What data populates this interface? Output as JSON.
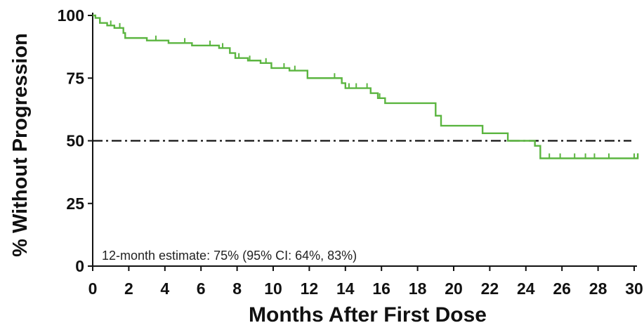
{
  "chart_data": {
    "type": "line",
    "title": "",
    "xlabel": "Months After First Dose",
    "ylabel": "% Without Progression",
    "xlim": [
      0,
      30
    ],
    "ylim": [
      0,
      100
    ],
    "xticks": [
      "0",
      "2",
      "4",
      "6",
      "8",
      "10",
      "12",
      "14",
      "16",
      "18",
      "20",
      "22",
      "24",
      "26",
      "28",
      "30"
    ],
    "yticks": [
      "0",
      "25",
      "50",
      "75",
      "100"
    ],
    "grid": false,
    "reference_line": {
      "y": 50,
      "style": "dash-dot"
    },
    "annotation": "12-month estimate: 75% (95% CI: 64%, 83%)",
    "series": [
      {
        "color": "#5bb540",
        "steps": [
          [
            0,
            100
          ],
          [
            0.15,
            99
          ],
          [
            0.4,
            97
          ],
          [
            0.8,
            96
          ],
          [
            1.2,
            95
          ],
          [
            1.7,
            93
          ],
          [
            1.8,
            91
          ],
          [
            3.0,
            90
          ],
          [
            4.2,
            89
          ],
          [
            5.5,
            88
          ],
          [
            6.0,
            88
          ],
          [
            7.0,
            87
          ],
          [
            7.6,
            85
          ],
          [
            7.9,
            83
          ],
          [
            8.6,
            82
          ],
          [
            9.3,
            81
          ],
          [
            9.9,
            79
          ],
          [
            10.9,
            78
          ],
          [
            11.9,
            75
          ],
          [
            13.2,
            75
          ],
          [
            13.8,
            73
          ],
          [
            14.0,
            71
          ],
          [
            15.4,
            69
          ],
          [
            15.8,
            67
          ],
          [
            16.2,
            65
          ],
          [
            19.0,
            60
          ],
          [
            19.3,
            56
          ],
          [
            21.6,
            53
          ],
          [
            23.0,
            50
          ],
          [
            24.5,
            48
          ],
          [
            24.8,
            43
          ],
          [
            30.2,
            43
          ],
          [
            30.2,
            45
          ]
        ],
        "censor_x": [
          0.4,
          1.0,
          1.5,
          3.5,
          5.1,
          6.5,
          7.2,
          8.1,
          8.7,
          9.6,
          10.6,
          11.2,
          13.4,
          14.2,
          14.6,
          15.2,
          15.9,
          25.3,
          25.9,
          26.7,
          27.3,
          27.8,
          28.6,
          30.0
        ]
      }
    ]
  }
}
